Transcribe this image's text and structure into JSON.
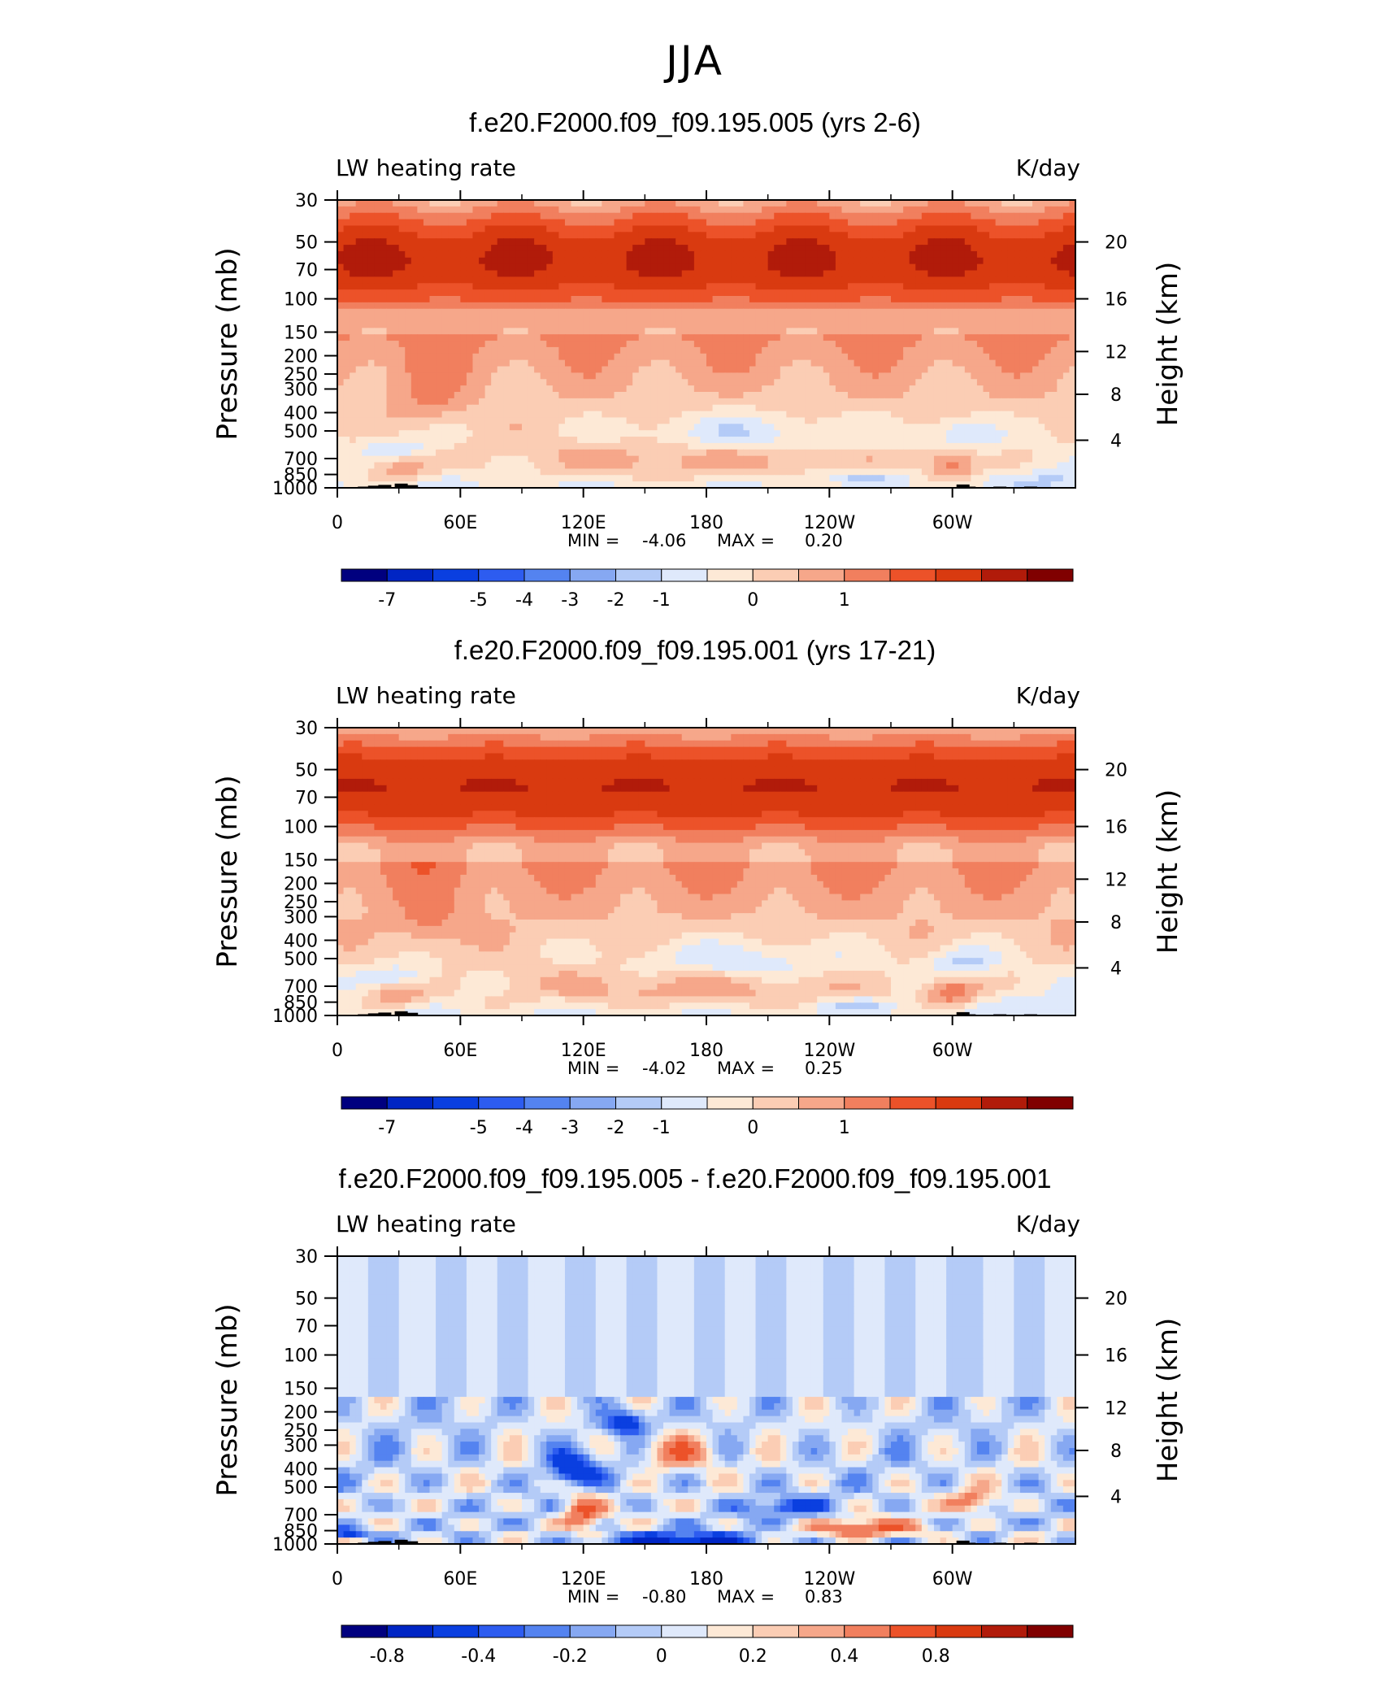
{
  "figure": {
    "title": "JJA"
  },
  "chart_data": [
    {
      "type": "heatmap",
      "title": "f.e20.F2000.f09_f09.195.005 (yrs 2-6)",
      "left_label": "LW heating rate",
      "right_label": "K/day",
      "ylabel": "Pressure (mb)",
      "ylabel_right": "Height (km)",
      "x_ticks": [
        "0",
        "60E",
        "120E",
        "180",
        "120W",
        "60W"
      ],
      "x_range": [
        0,
        360
      ],
      "y_ticks": [
        "30",
        "50",
        "70",
        "100",
        "150",
        "200",
        "250",
        "300",
        "400",
        "500",
        "700",
        "850",
        "1000"
      ],
      "y_range": [
        1000,
        30
      ],
      "height_ticks": [
        "20",
        "16",
        "12",
        "8",
        "4"
      ],
      "stats": {
        "min_label": "MIN =",
        "min": "-4.06",
        "max_label": "MAX =",
        "max": "0.20"
      },
      "colorbar": {
        "labels": [
          "-7",
          "-5",
          "-4",
          "-3",
          "-2",
          "-1",
          "0",
          "1"
        ]
      },
      "mode": "abs",
      "variant": 0
    },
    {
      "type": "heatmap",
      "title": "f.e20.F2000.f09_f09.195.001 (yrs 17-21)",
      "left_label": "LW heating rate",
      "right_label": "K/day",
      "ylabel": "Pressure (mb)",
      "ylabel_right": "Height (km)",
      "x_ticks": [
        "0",
        "60E",
        "120E",
        "180",
        "120W",
        "60W"
      ],
      "x_range": [
        0,
        360
      ],
      "y_ticks": [
        "30",
        "50",
        "70",
        "100",
        "150",
        "200",
        "250",
        "300",
        "400",
        "500",
        "700",
        "850",
        "1000"
      ],
      "y_range": [
        1000,
        30
      ],
      "height_ticks": [
        "20",
        "16",
        "12",
        "8",
        "4"
      ],
      "stats": {
        "min_label": "MIN =",
        "min": "-4.02",
        "max_label": "MAX =",
        "max": "0.25"
      },
      "colorbar": {
        "labels": [
          "-7",
          "-5",
          "-4",
          "-3",
          "-2",
          "-1",
          "0",
          "1"
        ]
      },
      "mode": "abs",
      "variant": 1
    },
    {
      "type": "heatmap",
      "title": "f.e20.F2000.f09_f09.195.005 - f.e20.F2000.f09_f09.195.001",
      "left_label": "LW heating rate",
      "right_label": "K/day",
      "ylabel": "Pressure (mb)",
      "ylabel_right": "Height (km)",
      "x_ticks": [
        "0",
        "60E",
        "120E",
        "180",
        "120W",
        "60W"
      ],
      "x_range": [
        0,
        360
      ],
      "y_ticks": [
        "30",
        "50",
        "70",
        "100",
        "150",
        "200",
        "250",
        "300",
        "400",
        "500",
        "700",
        "850",
        "1000"
      ],
      "y_range": [
        1000,
        30
      ],
      "height_ticks": [
        "20",
        "16",
        "12",
        "8",
        "4"
      ],
      "stats": {
        "min_label": "MIN =",
        "min": "-0.80",
        "max_label": "MAX =",
        "max": "0.83"
      },
      "colorbar": {
        "labels": [
          "-0.8",
          "-0.4",
          "-0.2",
          "0",
          "0.2",
          "0.4",
          "0.8"
        ]
      },
      "mode": "diff",
      "variant": 2
    }
  ],
  "palette": [
    "#00007f",
    "#0025c4",
    "#0a3fe0",
    "#2d5cf0",
    "#5483f0",
    "#86a8f2",
    "#b4cbf7",
    "#dfe9fb",
    "#fde9d6",
    "#fbcdb4",
    "#f6a78a",
    "#f17f5e",
    "#ec5229",
    "#d93a10",
    "#b11b0a",
    "#800000"
  ]
}
